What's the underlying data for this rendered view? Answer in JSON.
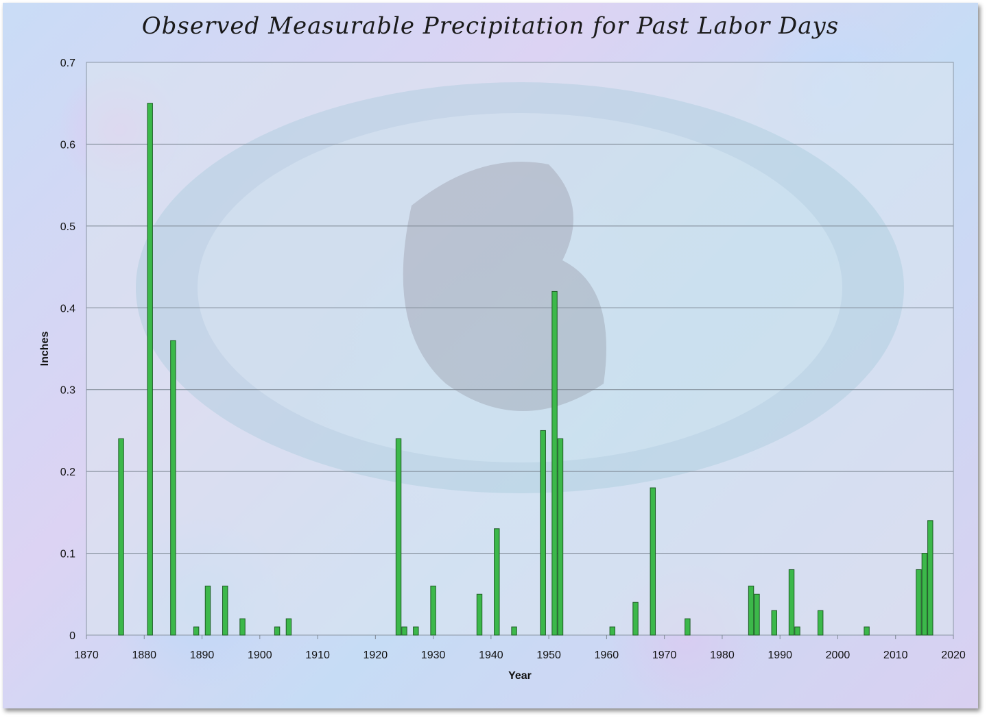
{
  "chart_data": {
    "type": "bar",
    "title": "Observed Measurable Precipitation for Past Labor Days",
    "xlabel": "Year",
    "ylabel": "Inches",
    "xlim": [
      1870,
      2020
    ],
    "ylim": [
      0,
      0.7
    ],
    "xticks": [
      "1870",
      "1880",
      "1890",
      "1900",
      "1910",
      "1920",
      "1930",
      "1940",
      "1950",
      "1960",
      "1970",
      "1980",
      "1990",
      "2000",
      "2010",
      "2020"
    ],
    "yticks": [
      "0",
      "0.1",
      "0.2",
      "0.3",
      "0.4",
      "0.5",
      "0.6",
      "0.7"
    ],
    "grid": true,
    "bar_color": "#3cb84a",
    "series": [
      {
        "x": [
          1876,
          1881,
          1885,
          1889,
          1891,
          1894,
          1897,
          1903,
          1905,
          1924,
          1925,
          1927,
          1930,
          1938,
          1941,
          1944,
          1949,
          1951,
          1952,
          1961,
          1965,
          1968,
          1974,
          1985,
          1986,
          1989,
          1992,
          1993,
          1997,
          2005,
          2014,
          2015,
          2016
        ],
        "values": [
          0.24,
          0.65,
          0.36,
          0.01,
          0.06,
          0.06,
          0.02,
          0.01,
          0.02,
          0.24,
          0.01,
          0.01,
          0.06,
          0.05,
          0.13,
          0.01,
          0.25,
          0.42,
          0.24,
          0.01,
          0.04,
          0.18,
          0.02,
          0.06,
          0.05,
          0.03,
          0.08,
          0.01,
          0.03,
          0.01,
          0.08,
          0.1,
          0.14
        ]
      }
    ]
  }
}
